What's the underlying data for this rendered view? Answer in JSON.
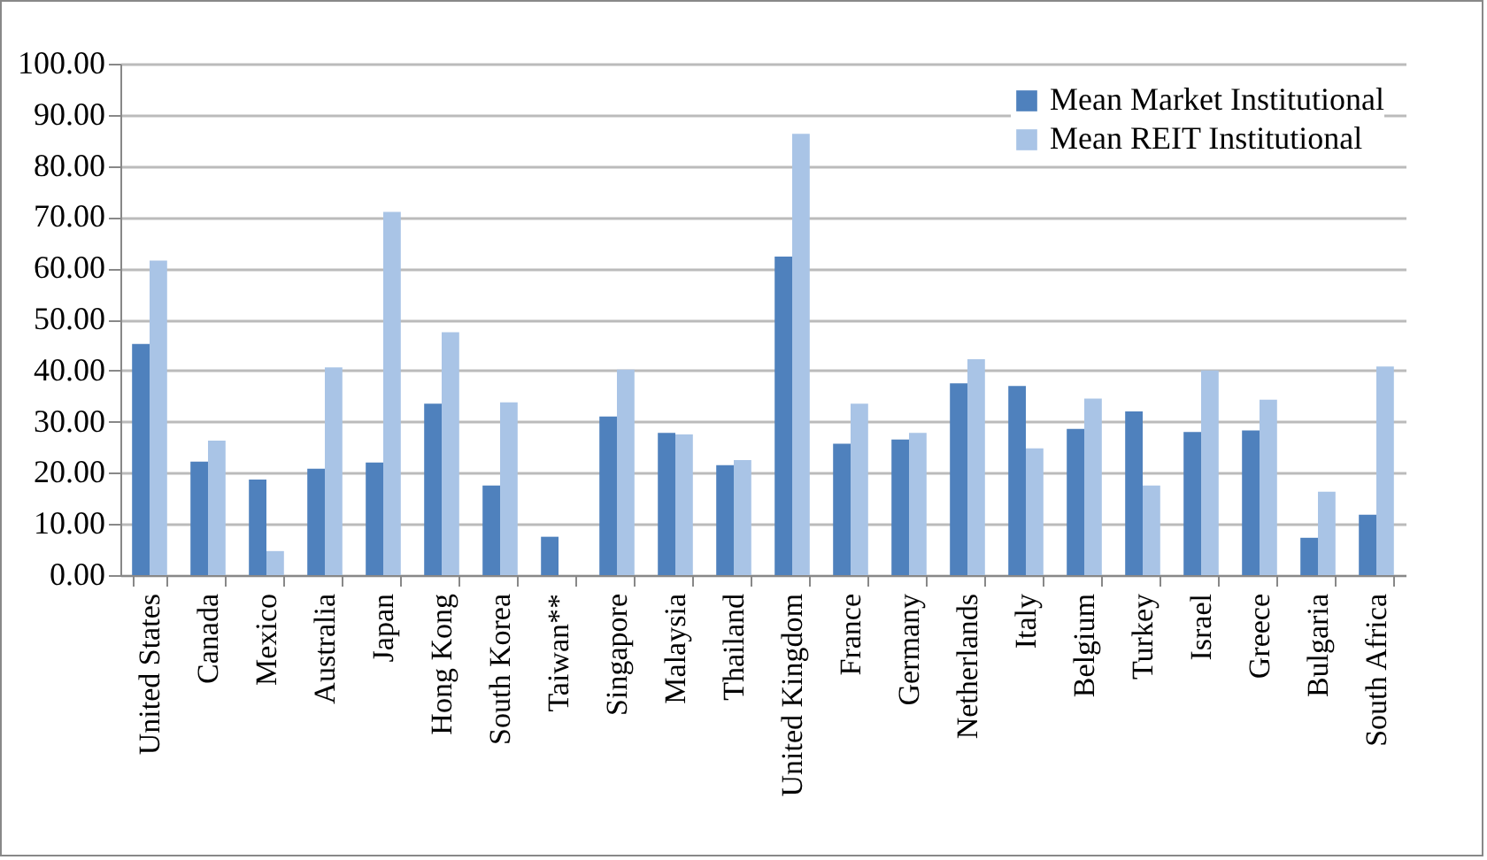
{
  "chart_data": {
    "type": "bar",
    "categories": [
      "United States",
      "Canada",
      "Mexico",
      "Australia",
      "Japan",
      "Hong Kong",
      "South Korea",
      "Taiwan**",
      "Singapore",
      "Malaysia",
      "Thailand",
      "United Kingdom",
      "France",
      "Germany",
      "Netherlands",
      "Italy",
      "Belgium",
      "Turkey",
      "Israel",
      "Greece",
      "Bulgaria",
      "South Africa"
    ],
    "series": [
      {
        "name": "Mean Market Institutional",
        "color": "#4f81bd",
        "values": [
          45.2,
          22.2,
          18.7,
          20.8,
          22.0,
          33.5,
          17.5,
          7.5,
          31.0,
          27.8,
          21.5,
          62.3,
          25.7,
          26.5,
          37.5,
          37.0,
          28.6,
          32.0,
          28.0,
          28.3,
          7.3,
          11.8
        ]
      },
      {
        "name": "Mean REIT Institutional",
        "color": "#a9c4e6",
        "values": [
          61.5,
          26.3,
          4.7,
          40.6,
          71.0,
          47.5,
          33.8,
          null,
          40.2,
          27.5,
          22.5,
          86.3,
          33.5,
          27.8,
          42.2,
          24.8,
          34.5,
          17.5,
          40.0,
          34.3,
          16.3,
          40.8
        ]
      }
    ],
    "ylim": [
      0,
      100
    ],
    "yticks": [
      {
        "value": 0,
        "label": "0.00"
      },
      {
        "value": 10,
        "label": "10.00"
      },
      {
        "value": 20,
        "label": "20.00"
      },
      {
        "value": 30,
        "label": "30.00"
      },
      {
        "value": 40,
        "label": "40.00"
      },
      {
        "value": 50,
        "label": "50.00"
      },
      {
        "value": 60,
        "label": "60.00"
      },
      {
        "value": 70,
        "label": "70.00"
      },
      {
        "value": 80,
        "label": "80.00"
      },
      {
        "value": 90,
        "label": "90.00"
      },
      {
        "value": 100,
        "label": "100.00"
      }
    ],
    "grid": "y",
    "legend": "top right"
  }
}
